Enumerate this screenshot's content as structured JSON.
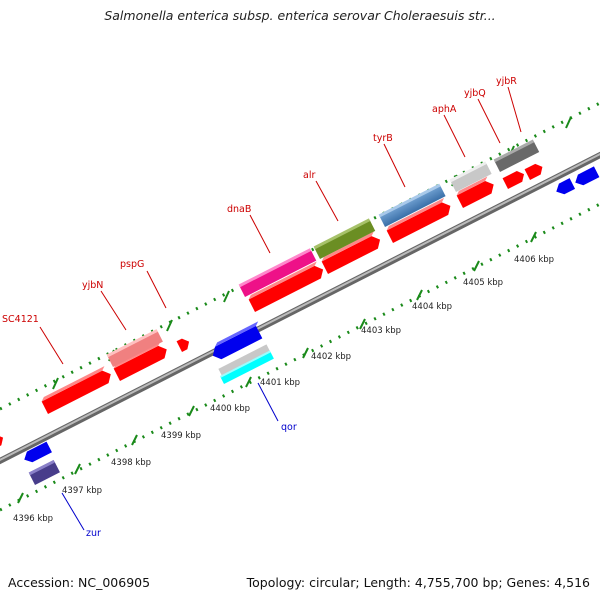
{
  "title": "Salmonella enterica subsp. enterica serovar Choleraesuis str...",
  "footer": {
    "accession": "Accession: NC_006905",
    "summary": "Topology: circular; Length: 4,755,700 bp; Genes: 4,516"
  },
  "genes_labeled": [
    {
      "name": "SC4121",
      "strand": "forward"
    },
    {
      "name": "yjbN",
      "strand": "forward"
    },
    {
      "name": "pspG",
      "strand": "forward"
    },
    {
      "name": "dnaB",
      "strand": "forward"
    },
    {
      "name": "alr",
      "strand": "forward"
    },
    {
      "name": "tyrB",
      "strand": "forward"
    },
    {
      "name": "aphA",
      "strand": "forward"
    },
    {
      "name": "yjbQ",
      "strand": "forward"
    },
    {
      "name": "yjbR",
      "strand": "forward"
    },
    {
      "name": "qor",
      "strand": "reverse"
    },
    {
      "name": "zur",
      "strand": "reverse"
    }
  ],
  "kbp_ticks": [
    "4396 kbp",
    "4397 kbp",
    "4398 kbp",
    "4399 kbp",
    "4400 kbp",
    "4401 kbp",
    "4402 kbp",
    "4403 kbp",
    "4404 kbp",
    "4405 kbp",
    "4406 kbp"
  ],
  "colors": {
    "forward_cds": "#ff0000",
    "reverse_cds": "#0000ee",
    "forward_label": "#cc0000",
    "reverse_label": "#0000cc",
    "backbone": "#888888",
    "tick": "#1a8a1a",
    "dnaB": "#ee1188",
    "alr": "#6b8e23",
    "tyrB": "#4682b4",
    "aphA": "#c8c8c8",
    "yjbQ": "#696969",
    "yjbN": "#f08080",
    "qor_top": "#c8c8c8",
    "qor_bottom": "#00ffff",
    "zur": "#483d8b"
  }
}
